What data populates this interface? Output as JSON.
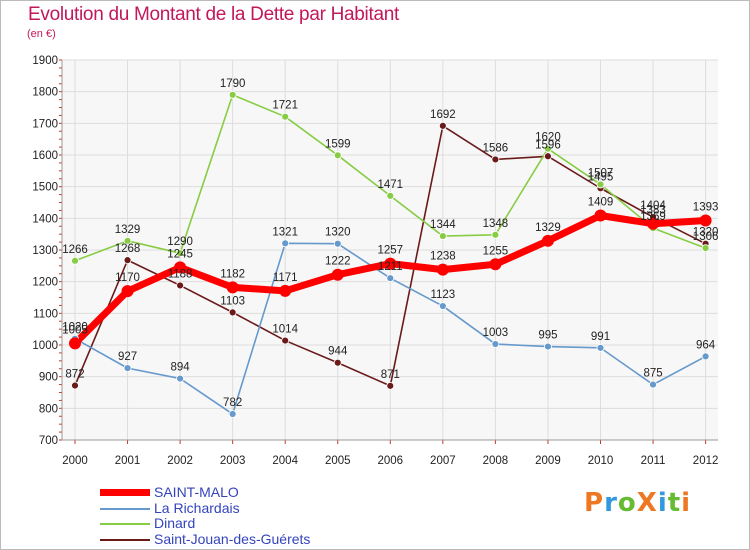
{
  "title": "Evolution du Montant de la Dette par Habitant",
  "unit": "(en €)",
  "logo": "ProXiti",
  "chart_data": {
    "type": "line",
    "categories": [
      "2000",
      "2001",
      "2002",
      "2003",
      "2004",
      "2005",
      "2006",
      "2007",
      "2008",
      "2009",
      "2010",
      "2011",
      "2012"
    ],
    "ylim": [
      700,
      1900
    ],
    "yticks": [
      700,
      800,
      900,
      1000,
      1100,
      1200,
      1300,
      1400,
      1500,
      1600,
      1700,
      1800,
      1900
    ],
    "grid": true,
    "legend_position": "bottom-left",
    "series": [
      {
        "name": "SAINT-MALO",
        "color": "#ff0000",
        "values": [
          1005,
          1170,
          1245,
          1182,
          1171,
          1222,
          1257,
          1238,
          1255,
          1329,
          1409,
          1383,
          1393
        ]
      },
      {
        "name": "La Richardais",
        "color": "#6699cc",
        "values": [
          1020,
          927,
          894,
          782,
          1321,
          1320,
          1211,
          1123,
          1003,
          995,
          991,
          875,
          964
        ]
      },
      {
        "name": "Dinard",
        "color": "#88cc44",
        "values": [
          1266,
          1329,
          1290,
          1790,
          1721,
          1599,
          1471,
          1344,
          1348,
          1620,
          1507,
          1369,
          1306
        ]
      },
      {
        "name": "Saint-Jouan-des-Guérets",
        "color": "#6b1a1a",
        "values": [
          872,
          1268,
          1188,
          1103,
          1014,
          944,
          871,
          1692,
          1586,
          1596,
          1495,
          1404,
          1320
        ]
      }
    ]
  }
}
